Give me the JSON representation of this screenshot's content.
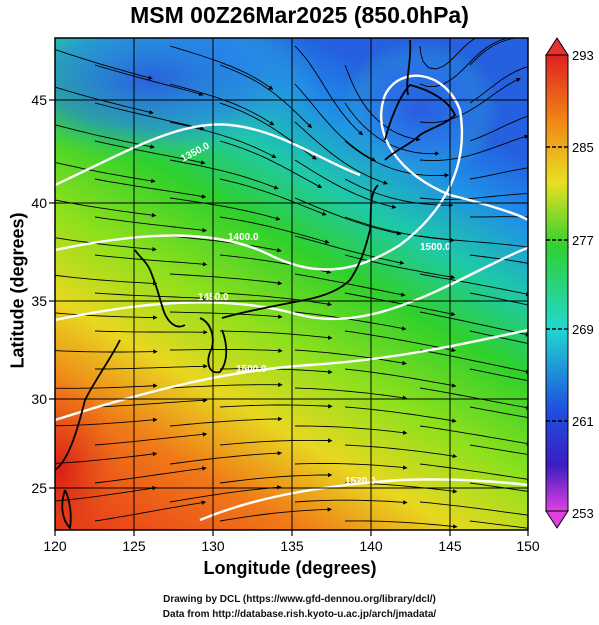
{
  "title": "MSM 00Z26Mar2025 (850.0hPa)",
  "axes": {
    "xlabel": "Longitude (degrees)",
    "ylabel": "Latitude  (degrees)",
    "xticks": [
      "120",
      "125",
      "130",
      "135",
      "140",
      "145",
      "150"
    ],
    "yticks": [
      "25",
      "30",
      "35",
      "40",
      "45"
    ],
    "xlim": [
      120,
      150
    ],
    "ylim": [
      22.4,
      47.6
    ]
  },
  "colorbar": {
    "ticks": [
      "293",
      "285",
      "277",
      "269",
      "261",
      "253"
    ],
    "range": [
      253,
      293
    ]
  },
  "contours": [
    {
      "label": "1350.0"
    },
    {
      "label": "1400.0"
    },
    {
      "label": "1450.0"
    },
    {
      "label": "1500.0"
    },
    {
      "label": "1500.0"
    },
    {
      "label": "1520.0"
    }
  ],
  "credits": {
    "line1": "Drawing by DCL (https://www.gfd-dennou.org/library/dcl/)",
    "line2": "Data from http://database.rish.kyoto-u.ac.jp/arch/jmadata/"
  },
  "colors": {
    "cold": "#2e62e0",
    "mid": "#27d627",
    "warm": "#e83a10",
    "contour": "#ffffff"
  }
}
